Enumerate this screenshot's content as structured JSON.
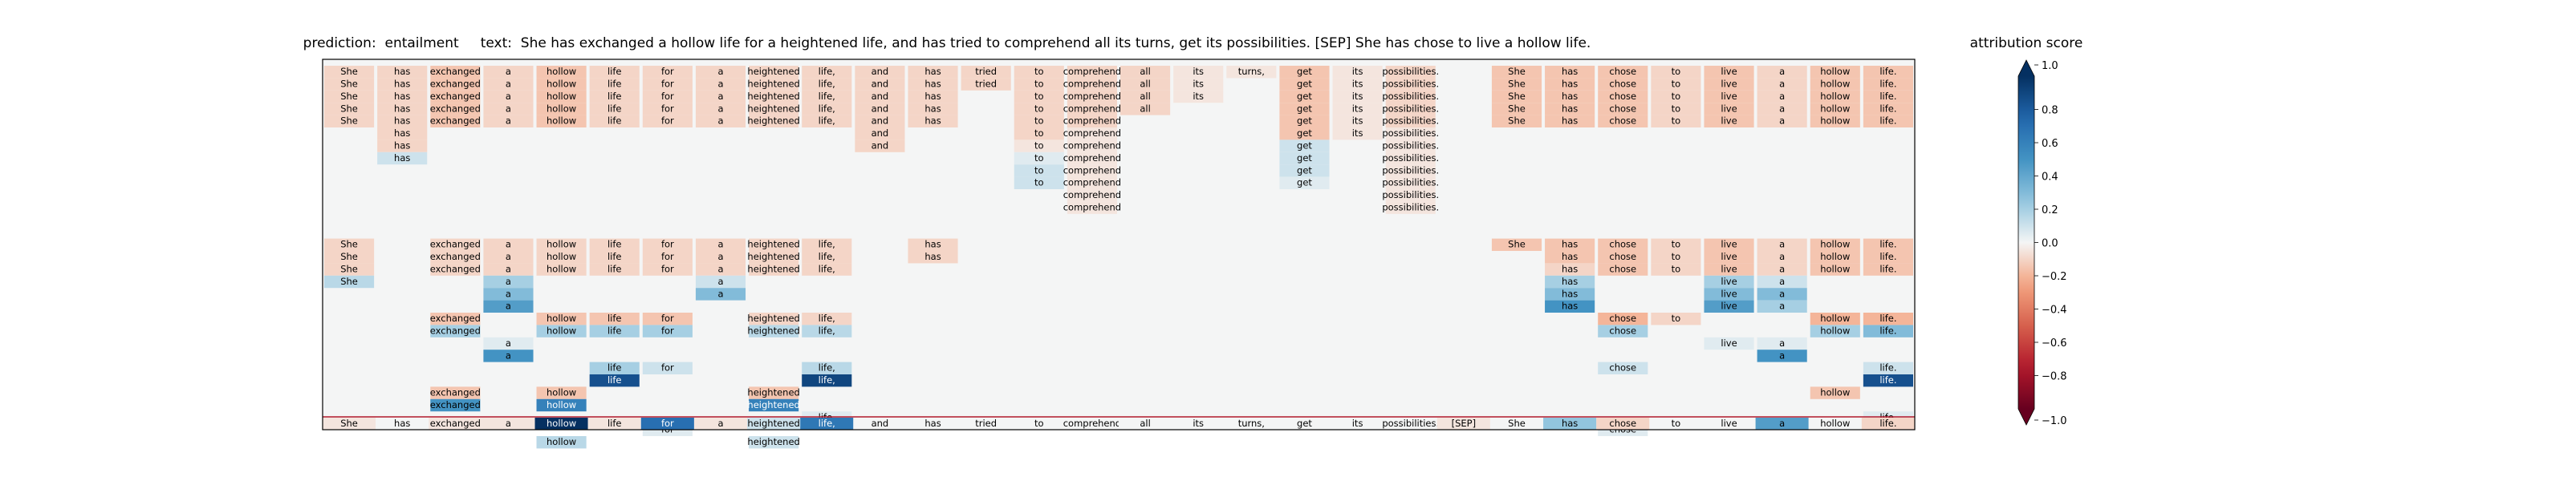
{
  "chart_data": {
    "type": "heatmap",
    "title": "prediction:  entailment     text:  She has exchanged a hollow life for a heightened life, and has tried to comprehend all its turns, get its possibilities. [SEP] She has chose to live a hollow life.",
    "tokens": [
      "She",
      "has",
      "exchanged",
      "a",
      "hollow",
      "life",
      "for",
      "a",
      "heightened",
      "life,",
      "and",
      "has",
      "tried",
      "to",
      "comprehend",
      "all",
      "its",
      "turns,",
      "get",
      "its",
      "possibilities.",
      "[SEP]",
      "She",
      "has",
      "chose",
      "to",
      "live",
      "a",
      "hollow",
      "life."
    ],
    "rows": [
      [
        [
          0,
          0.1
        ],
        [
          1,
          0.1
        ],
        [
          2,
          0.15
        ],
        [
          3,
          0.1
        ],
        [
          4,
          0.15
        ],
        [
          5,
          0.1
        ],
        [
          6,
          0.1
        ],
        [
          7,
          0.1
        ],
        [
          8,
          0.1
        ],
        [
          9,
          0.1
        ],
        [
          10,
          0.1
        ],
        [
          11,
          0.1
        ],
        [
          12,
          0.1
        ],
        [
          13,
          0.1
        ],
        [
          14,
          0.1
        ],
        [
          15,
          0.1
        ],
        [
          16,
          0.05
        ],
        [
          17,
          0.05
        ],
        [
          18,
          0.15
        ],
        [
          19,
          0.05
        ],
        [
          20,
          0.1
        ],
        [
          22,
          0.15
        ],
        [
          23,
          0.15
        ],
        [
          24,
          0.15
        ],
        [
          25,
          0.1
        ],
        [
          26,
          0.15
        ],
        [
          27,
          0.1
        ],
        [
          28,
          0.15
        ],
        [
          29,
          0.15
        ]
      ],
      [
        [
          0,
          0.1
        ],
        [
          1,
          0.1
        ],
        [
          2,
          0.15
        ],
        [
          3,
          0.1
        ],
        [
          4,
          0.15
        ],
        [
          5,
          0.1
        ],
        [
          6,
          0.1
        ],
        [
          7,
          0.1
        ],
        [
          8,
          0.1
        ],
        [
          9,
          0.1
        ],
        [
          10,
          0.1
        ],
        [
          11,
          0.1
        ],
        [
          12,
          0.1
        ],
        [
          13,
          0.1
        ],
        [
          14,
          0.1
        ],
        [
          15,
          0.1
        ],
        [
          16,
          0.05
        ],
        [
          18,
          0.15
        ],
        [
          19,
          0.05
        ],
        [
          20,
          0.1
        ],
        [
          22,
          0.15
        ],
        [
          23,
          0.15
        ],
        [
          24,
          0.15
        ],
        [
          25,
          0.1
        ],
        [
          26,
          0.15
        ],
        [
          27,
          0.1
        ],
        [
          28,
          0.15
        ],
        [
          29,
          0.15
        ]
      ],
      [
        [
          0,
          0.1
        ],
        [
          1,
          0.1
        ],
        [
          2,
          0.15
        ],
        [
          3,
          0.1
        ],
        [
          4,
          0.15
        ],
        [
          5,
          0.1
        ],
        [
          6,
          0.1
        ],
        [
          7,
          0.1
        ],
        [
          8,
          0.1
        ],
        [
          9,
          0.1
        ],
        [
          10,
          0.1
        ],
        [
          11,
          0.1
        ],
        [
          13,
          0.1
        ],
        [
          14,
          0.1
        ],
        [
          15,
          0.1
        ],
        [
          16,
          0.05
        ],
        [
          18,
          0.15
        ],
        [
          19,
          0.05
        ],
        [
          20,
          0.1
        ],
        [
          22,
          0.15
        ],
        [
          23,
          0.15
        ],
        [
          24,
          0.15
        ],
        [
          25,
          0.1
        ],
        [
          26,
          0.15
        ],
        [
          27,
          0.1
        ],
        [
          28,
          0.15
        ],
        [
          29,
          0.15
        ]
      ],
      [
        [
          0,
          0.1
        ],
        [
          1,
          0.1
        ],
        [
          2,
          0.15
        ],
        [
          3,
          0.1
        ],
        [
          4,
          0.15
        ],
        [
          5,
          0.1
        ],
        [
          6,
          0.1
        ],
        [
          7,
          0.1
        ],
        [
          8,
          0.1
        ],
        [
          9,
          0.1
        ],
        [
          10,
          0.1
        ],
        [
          11,
          0.1
        ],
        [
          13,
          0.1
        ],
        [
          14,
          0.1
        ],
        [
          15,
          0.1
        ],
        [
          18,
          0.15
        ],
        [
          19,
          0.05
        ],
        [
          20,
          0.1
        ],
        [
          22,
          0.15
        ],
        [
          23,
          0.15
        ],
        [
          24,
          0.15
        ],
        [
          25,
          0.1
        ],
        [
          26,
          0.15
        ],
        [
          27,
          0.1
        ],
        [
          28,
          0.15
        ],
        [
          29,
          0.15
        ]
      ],
      [
        [
          0,
          0.1
        ],
        [
          1,
          0.1
        ],
        [
          2,
          0.15
        ],
        [
          3,
          0.1
        ],
        [
          4,
          0.15
        ],
        [
          5,
          0.1
        ],
        [
          6,
          0.1
        ],
        [
          7,
          0.1
        ],
        [
          8,
          0.1
        ],
        [
          9,
          0.1
        ],
        [
          10,
          0.1
        ],
        [
          11,
          0.1
        ],
        [
          13,
          0.1
        ],
        [
          14,
          0.1
        ],
        [
          18,
          0.15
        ],
        [
          19,
          0.05
        ],
        [
          20,
          0.1
        ],
        [
          22,
          0.15
        ],
        [
          23,
          0.15
        ],
        [
          24,
          0.15
        ],
        [
          25,
          0.1
        ],
        [
          26,
          0.15
        ],
        [
          27,
          0.1
        ],
        [
          28,
          0.15
        ],
        [
          29,
          0.15
        ]
      ],
      [
        [
          1,
          0.1
        ],
        [
          10,
          0.1
        ],
        [
          13,
          0.1
        ],
        [
          14,
          0.05
        ],
        [
          18,
          0.15
        ],
        [
          19,
          0.05
        ],
        [
          20,
          0.05
        ]
      ],
      [
        [
          1,
          0.1
        ],
        [
          10,
          0.1
        ],
        [
          13,
          0.05
        ],
        [
          14,
          0.05
        ],
        [
          18,
          -0.1
        ],
        [
          20,
          0.05
        ]
      ],
      [
        [
          1,
          -0.1
        ],
        [
          13,
          -0.05
        ],
        [
          14,
          0.05
        ],
        [
          18,
          -0.1
        ],
        [
          20,
          0.05
        ]
      ],
      [
        [
          13,
          -0.1
        ],
        [
          14,
          0.05
        ],
        [
          18,
          -0.1
        ],
        [
          20,
          0.05
        ]
      ],
      [
        [
          13,
          -0.1
        ],
        [
          14,
          0.05
        ],
        [
          18,
          -0.05
        ],
        [
          20,
          0.05
        ]
      ],
      [
        [
          14,
          0.05
        ],
        [
          20,
          0.05
        ]
      ],
      [
        [
          14,
          0.05
        ],
        [
          20,
          0.05
        ]
      ],
      [],
      [],
      [
        [
          0,
          0.1
        ],
        [
          2,
          0.1
        ],
        [
          3,
          0.1
        ],
        [
          4,
          0.1
        ],
        [
          5,
          0.1
        ],
        [
          6,
          0.1
        ],
        [
          7,
          0.1
        ],
        [
          8,
          0.1
        ],
        [
          9,
          0.1
        ],
        [
          11,
          0.1
        ],
        [
          22,
          0.15
        ],
        [
          23,
          0.15
        ],
        [
          24,
          0.15
        ],
        [
          25,
          0.1
        ],
        [
          26,
          0.15
        ],
        [
          27,
          0.1
        ],
        [
          28,
          0.15
        ],
        [
          29,
          0.15
        ]
      ],
      [
        [
          0,
          0.1
        ],
        [
          2,
          0.1
        ],
        [
          3,
          0.1
        ],
        [
          4,
          0.1
        ],
        [
          5,
          0.1
        ],
        [
          6,
          0.1
        ],
        [
          7,
          0.1
        ],
        [
          8,
          0.1
        ],
        [
          9,
          0.1
        ],
        [
          11,
          0.1
        ],
        [
          23,
          0.15
        ],
        [
          24,
          0.15
        ],
        [
          25,
          0.1
        ],
        [
          26,
          0.15
        ],
        [
          27,
          0.1
        ],
        [
          28,
          0.15
        ],
        [
          29,
          0.15
        ]
      ],
      [
        [
          0,
          0.1
        ],
        [
          2,
          0.1
        ],
        [
          3,
          0.1
        ],
        [
          4,
          0.1
        ],
        [
          5,
          0.1
        ],
        [
          6,
          0.1
        ],
        [
          7,
          0.1
        ],
        [
          8,
          0.1
        ],
        [
          9,
          0.1
        ],
        [
          23,
          0.1
        ],
        [
          24,
          0.15
        ],
        [
          25,
          0.1
        ],
        [
          26,
          0.15
        ],
        [
          27,
          0.1
        ],
        [
          28,
          0.15
        ],
        [
          29,
          0.15
        ]
      ],
      [
        [
          0,
          -0.15
        ],
        [
          3,
          -0.2
        ],
        [
          7,
          -0.1
        ],
        [
          23,
          -0.2
        ],
        [
          26,
          -0.2
        ],
        [
          27,
          -0.1
        ]
      ],
      [
        [
          3,
          -0.3
        ],
        [
          7,
          -0.3
        ],
        [
          23,
          -0.3
        ],
        [
          26,
          -0.3
        ],
        [
          27,
          -0.3
        ]
      ],
      [
        [
          3,
          -0.45
        ],
        [
          23,
          -0.5
        ],
        [
          26,
          -0.45
        ],
        [
          27,
          -0.2
        ]
      ],
      [
        [
          2,
          0.15
        ],
        [
          4,
          0.15
        ],
        [
          5,
          0.15
        ],
        [
          6,
          0.15
        ],
        [
          8,
          0.1
        ],
        [
          9,
          0.1
        ],
        [
          24,
          0.2
        ],
        [
          25,
          0.1
        ],
        [
          28,
          0.2
        ],
        [
          29,
          0.2
        ]
      ],
      [
        [
          2,
          -0.2
        ],
        [
          4,
          -0.2
        ],
        [
          5,
          -0.2
        ],
        [
          6,
          -0.2
        ],
        [
          8,
          -0.15
        ],
        [
          9,
          -0.15
        ],
        [
          24,
          -0.2
        ],
        [
          28,
          -0.2
        ],
        [
          29,
          -0.3
        ]
      ],
      [
        [
          3,
          -0.05
        ],
        [
          26,
          -0.05
        ],
        [
          27,
          -0.05
        ]
      ],
      [
        [
          3,
          -0.5
        ],
        [
          27,
          -0.5
        ]
      ],
      [
        [
          5,
          -0.2
        ],
        [
          6,
          -0.1
        ],
        [
          9,
          -0.15
        ],
        [
          24,
          -0.1
        ],
        [
          29,
          -0.1
        ]
      ],
      [
        [
          5,
          -0.85
        ],
        [
          9,
          -0.9
        ],
        [
          29,
          -0.85
        ]
      ],
      [
        [
          2,
          0.15
        ],
        [
          4,
          0.15
        ],
        [
          8,
          0.15
        ],
        [
          28,
          0.15
        ]
      ],
      [
        [
          2,
          -0.5
        ],
        [
          4,
          -0.6
        ],
        [
          8,
          -0.6
        ]
      ],
      [
        [
          9,
          -0.05
        ],
        [
          29,
          -0.05
        ]
      ],
      [
        [
          6,
          -0.05
        ],
        [
          24,
          -0.05
        ]
      ],
      [
        [
          4,
          -0.15
        ],
        [
          8,
          -0.1
        ]
      ]
    ],
    "bottom_row": [
      0.05,
      0.0,
      0.05,
      0.05,
      -1.0,
      0.05,
      -0.7,
      0.05,
      -0.1,
      -0.65,
      0.0,
      0.0,
      0.0,
      0.0,
      0.0,
      0.0,
      0.0,
      0.0,
      0.0,
      0.0,
      0.0,
      0.05,
      0.0,
      -0.25,
      0.1,
      0.0,
      0.0,
      -0.45,
      0.0,
      0.1
    ],
    "colorbar": {
      "label": "attribution score",
      "ticks": [
        "1.0",
        "0.8",
        "0.6",
        "0.4",
        "0.2",
        "0.0",
        "−0.2",
        "−0.4",
        "−0.6",
        "−0.8",
        "−1.0"
      ],
      "range": [
        -1.0,
        1.0
      ],
      "colormap": "RdBu"
    }
  }
}
